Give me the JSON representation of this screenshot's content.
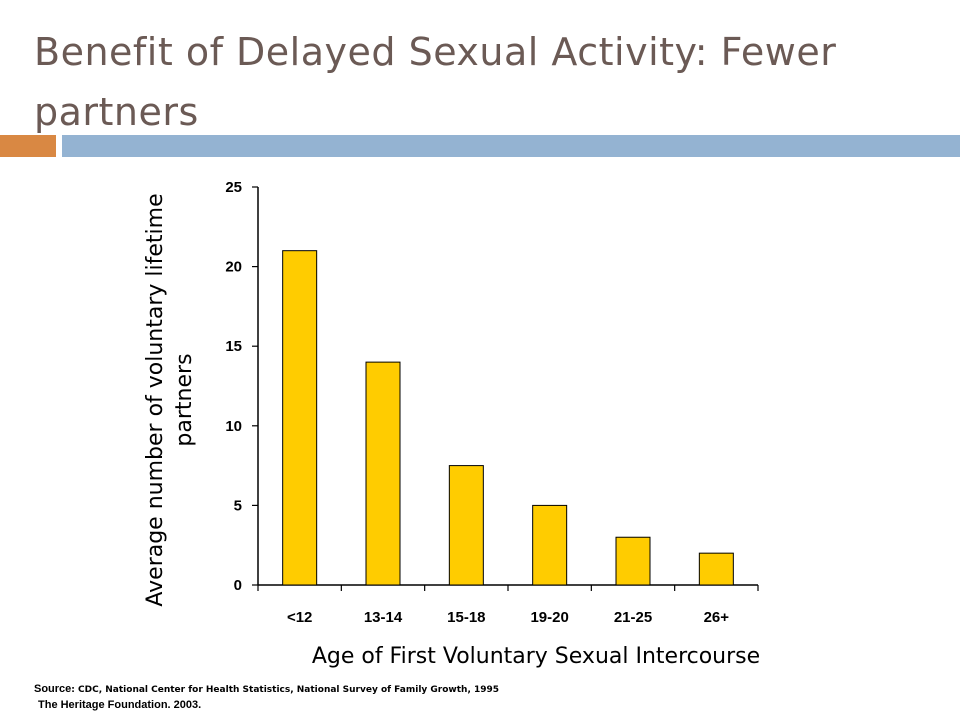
{
  "slide": {
    "title": "Benefit of Delayed Sexual Activity: Fewer partners",
    "source_label": "Source",
    "source_text": ": CDC, National Center for Health Statistics, National Survey of Family Growth, 1995",
    "source_line2": "The Heritage Foundation. 2003."
  },
  "colors": {
    "accent": "#d98843",
    "band": "#94b3d2",
    "bar": "#ffcc00",
    "title": "#6b5a55"
  },
  "chart_data": {
    "type": "bar",
    "categories": [
      "<12",
      "13-14",
      "15-18",
      "19-20",
      "21-25",
      "26+"
    ],
    "values": [
      21,
      14,
      7.5,
      5,
      3,
      2
    ],
    "xlabel": "Age of First Voluntary Sexual Intercourse",
    "ylabel": "Average number of voluntary lifetime partners",
    "ylim": [
      0,
      25
    ],
    "yticks": [
      0,
      5,
      10,
      15,
      20,
      25
    ],
    "grid": false,
    "legend": "none"
  }
}
